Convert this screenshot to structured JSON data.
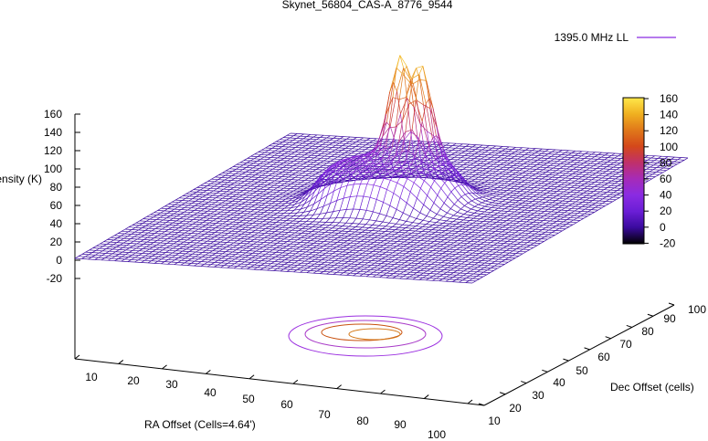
{
  "chart_data": {
    "type": "surface3d",
    "title": "Skynet_56804_CAS-A_8776_9544",
    "legend": {
      "label": "1395.0 MHz LL",
      "position": "top-right"
    },
    "zlabel": "Intensity (K)",
    "xlabel": "RA Offset (Cells=4.64')",
    "ylabel": "Dec Offset (cells)",
    "zlim": [
      -20,
      160
    ],
    "z_ticks": [
      "160",
      "140",
      "120",
      "100",
      "80",
      "60",
      "40",
      "20",
      "0",
      "-20"
    ],
    "x_ticks": [
      "10",
      "20",
      "30",
      "40",
      "50",
      "60",
      "70",
      "80",
      "90",
      "100"
    ],
    "y_ticks": [
      "10",
      "20",
      "30",
      "40",
      "50",
      "60",
      "70",
      "80",
      "90",
      "100"
    ],
    "colorbar": {
      "range": [
        -20,
        160
      ],
      "ticks": [
        "160",
        "140",
        "120",
        "100",
        "80",
        "60",
        "40",
        "20",
        "0",
        "-20"
      ],
      "colors": [
        "#000000",
        "#3a0a9e",
        "#6b1ed6",
        "#8a2be2",
        "#a62bb8",
        "#c0306a",
        "#d4481a",
        "#e0781a",
        "#f0b020",
        "#ffe84a"
      ]
    },
    "surface": {
      "baseline": 0,
      "plateau": {
        "level": 45,
        "center_ra": 50,
        "center_dec": 55
      },
      "peaks": [
        {
          "ra": 49,
          "dec": 62,
          "value": 150
        },
        {
          "ra": 55,
          "dec": 60,
          "value": 145
        }
      ],
      "grid": "on"
    },
    "contour": {
      "projection": "base",
      "levels": [
        10,
        40,
        80,
        120
      ]
    }
  }
}
